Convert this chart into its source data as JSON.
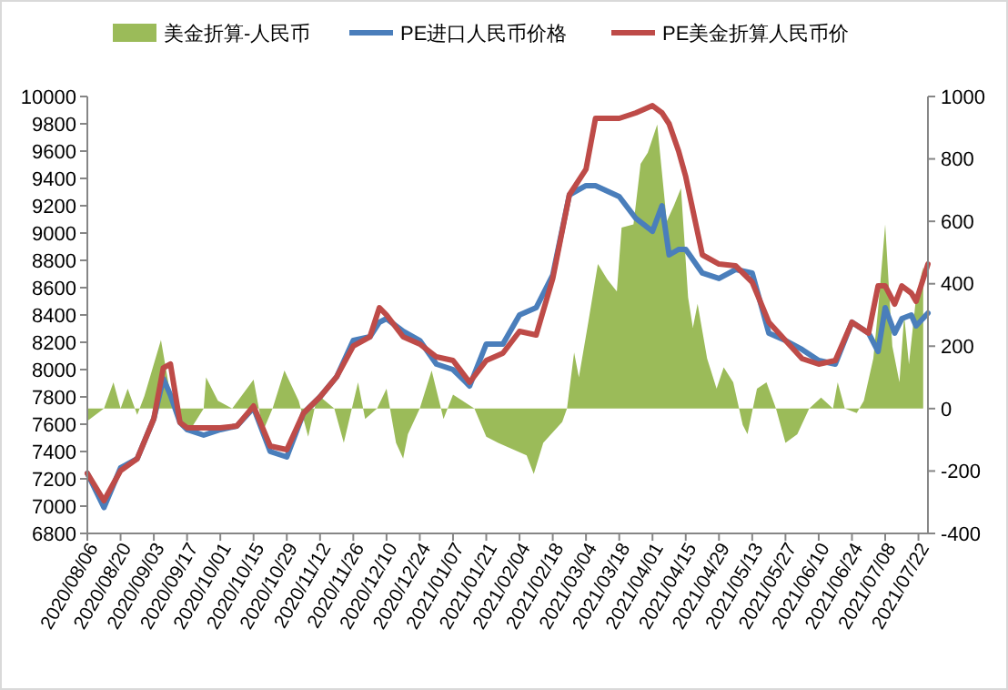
{
  "chart_data": {
    "type": "line",
    "x": [
      "2020-08-06",
      "2020-08-13",
      "2020-08-20",
      "2020-08-27",
      "2020-09-03",
      "2020-09-07",
      "2020-09-10",
      "2020-09-14",
      "2020-09-17",
      "2020-09-24",
      "2020-10-01",
      "2020-10-08",
      "2020-10-15",
      "2020-10-22",
      "2020-10-29",
      "2020-11-05",
      "2020-11-12",
      "2020-11-19",
      "2020-11-26",
      "2020-12-03",
      "2020-12-07",
      "2020-12-10",
      "2020-12-17",
      "2020-12-24",
      "2020-12-31",
      "2021-01-07",
      "2021-01-14",
      "2021-01-21",
      "2021-01-28",
      "2021-02-04",
      "2021-02-11",
      "2021-02-18",
      "2021-02-25",
      "2021-03-04",
      "2021-03-08",
      "2021-03-18",
      "2021-03-25",
      "2021-04-01",
      "2021-04-05",
      "2021-04-08",
      "2021-04-12",
      "2021-04-15",
      "2021-04-22",
      "2021-04-29",
      "2021-05-06",
      "2021-05-13",
      "2021-05-20",
      "2021-05-27",
      "2021-06-03",
      "2021-06-10",
      "2021-06-17",
      "2021-06-24",
      "2021-07-01",
      "2021-07-05",
      "2021-07-08",
      "2021-07-12",
      "2021-07-15",
      "2021-07-19",
      "2021-07-21",
      "2021-07-26"
    ],
    "series": [
      {
        "name": "美金折算-人民币",
        "type": "area",
        "axis": "y2",
        "color": "#9bbb59",
        "x": [
          "2020-08-06",
          "2020-08-13",
          "2020-08-17",
          "2020-08-20",
          "2020-08-23",
          "2020-08-27",
          "2020-08-30",
          "2020-09-06",
          "2020-09-11",
          "2020-09-18",
          "2020-09-24",
          "2020-09-25",
          "2020-09-30",
          "2020-10-06",
          "2020-10-15",
          "2020-10-19",
          "2020-10-23",
          "2020-10-28",
          "2020-11-03",
          "2020-11-07",
          "2020-11-11",
          "2020-11-18",
          "2020-11-22",
          "2020-11-28",
          "2020-12-01",
          "2020-12-06",
          "2020-12-10",
          "2020-12-14",
          "2020-12-17",
          "2020-12-19",
          "2020-12-24",
          "2020-12-29",
          "2021-01-03",
          "2021-01-07",
          "2021-01-16",
          "2021-01-21",
          "2021-01-26",
          "2021-02-07",
          "2021-02-10",
          "2021-02-14",
          "2021-02-22",
          "2021-02-24",
          "2021-02-27",
          "2021-03-01",
          "2021-03-05",
          "2021-03-09",
          "2021-03-13",
          "2021-03-17",
          "2021-03-19",
          "2021-03-24",
          "2021-03-27",
          "2021-03-30",
          "2021-04-03",
          "2021-04-07",
          "2021-04-10",
          "2021-04-13",
          "2021-04-16",
          "2021-04-18",
          "2021-04-20",
          "2021-04-24",
          "2021-04-28",
          "2021-05-01",
          "2021-05-05",
          "2021-05-09",
          "2021-05-11",
          "2021-05-15",
          "2021-05-19",
          "2021-05-23",
          "2021-05-27",
          "2021-06-01",
          "2021-06-06",
          "2021-06-11",
          "2021-06-16",
          "2021-06-18",
          "2021-06-21",
          "2021-06-26",
          "2021-06-29",
          "2021-07-03",
          "2021-07-05",
          "2021-07-08",
          "2021-07-11",
          "2021-07-14",
          "2021-07-16",
          "2021-07-18",
          "2021-07-21",
          "2021-07-24"
        ],
        "values": [
          -40,
          0,
          84,
          0,
          64,
          -20,
          40,
          220,
          0,
          -72,
          0,
          100,
          25,
          0,
          93,
          -72,
          0,
          122,
          25,
          -90,
          45,
          0,
          -110,
          84,
          -33,
          0,
          64,
          -110,
          -160,
          -82,
          0,
          122,
          -33,
          45,
          0,
          -90,
          -110,
          -150,
          -210,
          -110,
          -43,
          0,
          180,
          100,
          278,
          463,
          414,
          375,
          580,
          590,
          784,
          820,
          910,
          600,
          650,
          706,
          356,
          259,
          336,
          161,
          64,
          132,
          84,
          -52,
          -82,
          64,
          84,
          0,
          -110,
          -82,
          0,
          35,
          0,
          84,
          0,
          -14,
          25,
          161,
          317,
          590,
          200,
          84,
          298,
          142,
          356,
          453
        ]
      },
      {
        "name": "PE进口人民币价格",
        "color": "#4a7ebb",
        "values": [
          7240,
          6990,
          7280,
          7347,
          7640,
          7933,
          7813,
          7613,
          7560,
          7520,
          7560,
          7587,
          7720,
          7400,
          7360,
          7680,
          7800,
          7947,
          8213,
          8240,
          8347,
          8373,
          8280,
          8213,
          8040,
          8000,
          7880,
          8187,
          8187,
          8400,
          8453,
          8693,
          9280,
          9347,
          9347,
          9267,
          9107,
          9013,
          9200,
          8840,
          8880,
          8880,
          8707,
          8667,
          8733,
          8707,
          8267,
          8213,
          8147,
          8067,
          8040,
          8347,
          8267,
          8133,
          8453,
          8267,
          8373,
          8400,
          8320,
          8413
        ]
      },
      {
        "name": "PE美金折算人民币价",
        "color": "#be4b48",
        "values": [
          7240,
          7040,
          7260,
          7347,
          7640,
          8013,
          8040,
          7613,
          7574,
          7574,
          7574,
          7587,
          7733,
          7440,
          7413,
          7680,
          7800,
          7947,
          8173,
          8240,
          8453,
          8400,
          8240,
          8187,
          8093,
          8067,
          7907,
          8067,
          8120,
          8280,
          8253,
          8667,
          9280,
          9467,
          9840,
          9840,
          9880,
          9933,
          9880,
          9800,
          9600,
          9413,
          8840,
          8773,
          8760,
          8640,
          8347,
          8213,
          8080,
          8040,
          8067,
          8347,
          8267,
          8613,
          8613,
          8480,
          8613,
          8560,
          8500,
          8773
        ]
      }
    ],
    "xlim": [
      "2020-08-06",
      "2021-07-26"
    ],
    "xticks": [
      {
        "value": "2020-08-06",
        "label": "2020/08/06"
      },
      {
        "value": "2020-08-20",
        "label": "2020/08/20"
      },
      {
        "value": "2020-09-03",
        "label": "2020/09/03"
      },
      {
        "value": "2020-09-17",
        "label": "2020/09/17"
      },
      {
        "value": "2020-10-01",
        "label": "2020/10/01"
      },
      {
        "value": "2020-10-15",
        "label": "2020/10/15"
      },
      {
        "value": "2020-10-29",
        "label": "2020/10/29"
      },
      {
        "value": "2020-11-12",
        "label": "2020/11/12"
      },
      {
        "value": "2020-11-26",
        "label": "2020/11/26"
      },
      {
        "value": "2020-12-10",
        "label": "2020/12/10"
      },
      {
        "value": "2020-12-24",
        "label": "2020/12/24"
      },
      {
        "value": "2021-01-07",
        "label": "2021/01/07"
      },
      {
        "value": "2021-01-21",
        "label": "2021/01/21"
      },
      {
        "value": "2021-02-04",
        "label": "2021/02/04"
      },
      {
        "value": "2021-02-18",
        "label": "2021/02/18"
      },
      {
        "value": "2021-03-04",
        "label": "2021/03/04"
      },
      {
        "value": "2021-03-18",
        "label": "2021/03/18"
      },
      {
        "value": "2021-04-01",
        "label": "2021/04/01"
      },
      {
        "value": "2021-04-15",
        "label": "2021/04/15"
      },
      {
        "value": "2021-04-29",
        "label": "2021/04/29"
      },
      {
        "value": "2021-05-13",
        "label": "2021/05/13"
      },
      {
        "value": "2021-05-27",
        "label": "2021/05/27"
      },
      {
        "value": "2021-06-10",
        "label": "2021/06/10"
      },
      {
        "value": "2021-06-24",
        "label": "2021/06/24"
      },
      {
        "value": "2021-07-08",
        "label": "2021/07/08"
      },
      {
        "value": "2021-07-22",
        "label": "2021/07/22"
      }
    ],
    "ylim": [
      6800,
      10000
    ],
    "yticks": [
      6800,
      7000,
      7200,
      7400,
      7600,
      7800,
      8000,
      8200,
      8400,
      8600,
      8800,
      9000,
      9200,
      9400,
      9600,
      9800,
      10000
    ],
    "y2lim": [
      -400,
      1000
    ],
    "y2ticks": [
      -400,
      -200,
      0,
      200,
      400,
      600,
      800,
      1000
    ],
    "legend": "top"
  }
}
